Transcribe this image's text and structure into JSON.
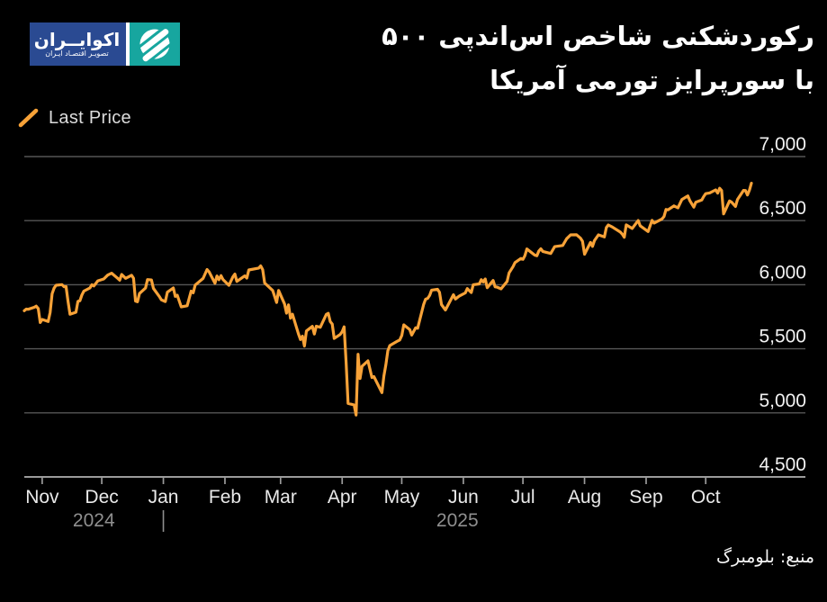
{
  "title": {
    "line1": "رکوردشکنی شاخص اس‌اندپی ۵۰۰",
    "line2": "با سورپرایز تورمی آمریکا"
  },
  "legend": {
    "label": "Last Price",
    "marker_color": "#f7a238",
    "position": "top-left"
  },
  "source": {
    "text": "منبع: بلومبرگ"
  },
  "logo": {
    "brand_title": "اکوایــران",
    "brand_subtitle": "تصویـر اقتصـاد ایـران",
    "blue": "#2a4a92",
    "teal": "#17a69f",
    "globe_icon": "striped-globe-icon"
  },
  "colors": {
    "background": "#000000",
    "line": "#f7a238",
    "grid": "#565656",
    "axis": "#9b9b9b",
    "y_label": "#f2f2f2",
    "month_label": "#e9e9e9",
    "year_label": "#8f8f8f"
  },
  "chart_data": {
    "type": "line",
    "series_name": "Last Price",
    "x_range": [
      "2024-10-23",
      "2025-10-24"
    ],
    "ylim": [
      4500,
      7000
    ],
    "grid": "horizontal",
    "legend_position": "top-left",
    "y_ticks": [
      {
        "value": 7000,
        "label": "7,000"
      },
      {
        "value": 6500,
        "label": "6,500"
      },
      {
        "value": 6000,
        "label": "6,000"
      },
      {
        "value": 5500,
        "label": "5,500"
      },
      {
        "value": 5000,
        "label": "5,000"
      },
      {
        "value": 4500,
        "label": "4,500"
      }
    ],
    "x_ticks": [
      {
        "date": "2024-11-01",
        "label": "Nov"
      },
      {
        "date": "2024-12-01",
        "label": "Dec"
      },
      {
        "date": "2025-01-01",
        "label": "Jan"
      },
      {
        "date": "2025-02-01",
        "label": "Feb"
      },
      {
        "date": "2025-03-01",
        "label": "Mar"
      },
      {
        "date": "2025-04-01",
        "label": "Apr"
      },
      {
        "date": "2025-05-01",
        "label": "May"
      },
      {
        "date": "2025-06-01",
        "label": "Jun"
      },
      {
        "date": "2025-07-01",
        "label": "Jul"
      },
      {
        "date": "2025-08-01",
        "label": "Aug"
      },
      {
        "date": "2025-09-01",
        "label": "Sep"
      },
      {
        "date": "2025-10-01",
        "label": "Oct"
      }
    ],
    "year_divider_date": "2025-01-01",
    "years": [
      {
        "label": "2024"
      },
      {
        "label": "2025"
      }
    ],
    "points": [
      [
        "2024-10-23",
        5797
      ],
      [
        "2024-10-24",
        5810
      ],
      [
        "2024-10-25",
        5808
      ],
      [
        "2024-10-28",
        5824
      ],
      [
        "2024-10-29",
        5833
      ],
      [
        "2024-10-30",
        5814
      ],
      [
        "2024-10-31",
        5705
      ],
      [
        "2024-11-01",
        5729
      ],
      [
        "2024-11-04",
        5713
      ],
      [
        "2024-11-05",
        5783
      ],
      [
        "2024-11-06",
        5929
      ],
      [
        "2024-11-07",
        5973
      ],
      [
        "2024-11-08",
        5996
      ],
      [
        "2024-11-11",
        6001
      ],
      [
        "2024-11-12",
        5984
      ],
      [
        "2024-11-13",
        5985
      ],
      [
        "2024-11-14",
        5870
      ],
      [
        "2024-11-15",
        5770
      ],
      [
        "2024-11-18",
        5785
      ],
      [
        "2024-11-19",
        5870
      ],
      [
        "2024-11-20",
        5875
      ],
      [
        "2024-11-21",
        5920
      ],
      [
        "2024-11-22",
        5950
      ],
      [
        "2024-11-25",
        5975
      ],
      [
        "2024-11-26",
        6000
      ],
      [
        "2024-11-27",
        5990
      ],
      [
        "2024-11-29",
        6030
      ],
      [
        "2024-12-02",
        6045
      ],
      [
        "2024-12-04",
        6075
      ],
      [
        "2024-12-06",
        6090
      ],
      [
        "2024-12-09",
        6050
      ],
      [
        "2024-12-10",
        6035
      ],
      [
        "2024-12-11",
        6080
      ],
      [
        "2024-12-13",
        6050
      ],
      [
        "2024-12-16",
        6074
      ],
      [
        "2024-12-17",
        6050
      ],
      [
        "2024-12-18",
        5872
      ],
      [
        "2024-12-19",
        5867
      ],
      [
        "2024-12-20",
        5931
      ],
      [
        "2024-12-23",
        5974
      ],
      [
        "2024-12-24",
        6040
      ],
      [
        "2024-12-26",
        6037
      ],
      [
        "2024-12-27",
        5971
      ],
      [
        "2024-12-30",
        5907
      ],
      [
        "2024-12-31",
        5882
      ],
      [
        "2025-01-02",
        5869
      ],
      [
        "2025-01-03",
        5942
      ],
      [
        "2025-01-06",
        5975
      ],
      [
        "2025-01-07",
        5909
      ],
      [
        "2025-01-08",
        5918
      ],
      [
        "2025-01-10",
        5827
      ],
      [
        "2025-01-13",
        5836
      ],
      [
        "2025-01-15",
        5950
      ],
      [
        "2025-01-16",
        5937
      ],
      [
        "2025-01-17",
        5997
      ],
      [
        "2025-01-21",
        6049
      ],
      [
        "2025-01-23",
        6119
      ],
      [
        "2025-01-24",
        6101
      ],
      [
        "2025-01-27",
        6012
      ],
      [
        "2025-01-28",
        6068
      ],
      [
        "2025-01-29",
        6039
      ],
      [
        "2025-01-30",
        6071
      ],
      [
        "2025-01-31",
        6041
      ],
      [
        "2025-02-03",
        5995
      ],
      [
        "2025-02-05",
        6061
      ],
      [
        "2025-02-06",
        6083
      ],
      [
        "2025-02-07",
        6026
      ],
      [
        "2025-02-11",
        6069
      ],
      [
        "2025-02-12",
        6052
      ],
      [
        "2025-02-13",
        6115
      ],
      [
        "2025-02-18",
        6130
      ],
      [
        "2025-02-19",
        6147
      ],
      [
        "2025-02-20",
        6118
      ],
      [
        "2025-02-21",
        6013
      ],
      [
        "2025-02-25",
        5955
      ],
      [
        "2025-02-27",
        5862
      ],
      [
        "2025-02-28",
        5955
      ],
      [
        "2025-03-03",
        5850
      ],
      [
        "2025-03-04",
        5778
      ],
      [
        "2025-03-05",
        5843
      ],
      [
        "2025-03-06",
        5739
      ],
      [
        "2025-03-07",
        5770
      ],
      [
        "2025-03-10",
        5615
      ],
      [
        "2025-03-11",
        5572
      ],
      [
        "2025-03-12",
        5599
      ],
      [
        "2025-03-13",
        5521
      ],
      [
        "2025-03-14",
        5639
      ],
      [
        "2025-03-17",
        5675
      ],
      [
        "2025-03-18",
        5615
      ],
      [
        "2025-03-19",
        5676
      ],
      [
        "2025-03-21",
        5668
      ],
      [
        "2025-03-24",
        5768
      ],
      [
        "2025-03-25",
        5777
      ],
      [
        "2025-03-26",
        5712
      ],
      [
        "2025-03-27",
        5693
      ],
      [
        "2025-03-28",
        5581
      ],
      [
        "2025-03-31",
        5612
      ],
      [
        "2025-04-01",
        5633
      ],
      [
        "2025-04-02",
        5671
      ],
      [
        "2025-04-03",
        5396
      ],
      [
        "2025-04-04",
        5074
      ],
      [
        "2025-04-07",
        5062
      ],
      [
        "2025-04-08",
        4983
      ],
      [
        "2025-04-09",
        5457
      ],
      [
        "2025-04-10",
        5268
      ],
      [
        "2025-04-11",
        5363
      ],
      [
        "2025-04-14",
        5406
      ],
      [
        "2025-04-16",
        5276
      ],
      [
        "2025-04-17",
        5283
      ],
      [
        "2025-04-21",
        5158
      ],
      [
        "2025-04-22",
        5288
      ],
      [
        "2025-04-23",
        5376
      ],
      [
        "2025-04-24",
        5485
      ],
      [
        "2025-04-25",
        5525
      ],
      [
        "2025-04-29",
        5561
      ],
      [
        "2025-04-30",
        5569
      ],
      [
        "2025-05-01",
        5604
      ],
      [
        "2025-05-02",
        5687
      ],
      [
        "2025-05-05",
        5650
      ],
      [
        "2025-05-06",
        5607
      ],
      [
        "2025-05-08",
        5664
      ],
      [
        "2025-05-09",
        5660
      ],
      [
        "2025-05-12",
        5844
      ],
      [
        "2025-05-13",
        5887
      ],
      [
        "2025-05-14",
        5893
      ],
      [
        "2025-05-15",
        5916
      ],
      [
        "2025-05-16",
        5958
      ],
      [
        "2025-05-19",
        5964
      ],
      [
        "2025-05-20",
        5940
      ],
      [
        "2025-05-21",
        5845
      ],
      [
        "2025-05-23",
        5803
      ],
      [
        "2025-05-27",
        5922
      ],
      [
        "2025-05-28",
        5888
      ],
      [
        "2025-05-30",
        5912
      ],
      [
        "2025-06-02",
        5936
      ],
      [
        "2025-06-03",
        5970
      ],
      [
        "2025-06-05",
        5939
      ],
      [
        "2025-06-06",
        6000
      ],
      [
        "2025-06-09",
        6006
      ],
      [
        "2025-06-10",
        6039
      ],
      [
        "2025-06-11",
        6022
      ],
      [
        "2025-06-12",
        6045
      ],
      [
        "2025-06-13",
        5977
      ],
      [
        "2025-06-16",
        6033
      ],
      [
        "2025-06-17",
        5983
      ],
      [
        "2025-06-18",
        5981
      ],
      [
        "2025-06-20",
        5968
      ],
      [
        "2025-06-23",
        6025
      ],
      [
        "2025-06-24",
        6092
      ],
      [
        "2025-06-26",
        6141
      ],
      [
        "2025-06-27",
        6173
      ],
      [
        "2025-06-30",
        6205
      ],
      [
        "2025-07-01",
        6198
      ],
      [
        "2025-07-02",
        6227
      ],
      [
        "2025-07-03",
        6279
      ],
      [
        "2025-07-07",
        6230
      ],
      [
        "2025-07-08",
        6226
      ],
      [
        "2025-07-09",
        6263
      ],
      [
        "2025-07-10",
        6280
      ],
      [
        "2025-07-11",
        6260
      ],
      [
        "2025-07-15",
        6244
      ],
      [
        "2025-07-17",
        6297
      ],
      [
        "2025-07-21",
        6306
      ],
      [
        "2025-07-23",
        6359
      ],
      [
        "2025-07-25",
        6389
      ],
      [
        "2025-07-28",
        6390
      ],
      [
        "2025-07-30",
        6363
      ],
      [
        "2025-07-31",
        6339
      ],
      [
        "2025-08-01",
        6238
      ],
      [
        "2025-08-04",
        6330
      ],
      [
        "2025-08-05",
        6299
      ],
      [
        "2025-08-06",
        6345
      ],
      [
        "2025-08-08",
        6389
      ],
      [
        "2025-08-11",
        6373
      ],
      [
        "2025-08-12",
        6446
      ],
      [
        "2025-08-13",
        6466
      ],
      [
        "2025-08-15",
        6450
      ],
      [
        "2025-08-19",
        6411
      ],
      [
        "2025-08-20",
        6395
      ],
      [
        "2025-08-21",
        6370
      ],
      [
        "2025-08-22",
        6467
      ],
      [
        "2025-08-25",
        6439
      ],
      [
        "2025-08-27",
        6481
      ],
      [
        "2025-08-28",
        6501
      ],
      [
        "2025-08-29",
        6460
      ],
      [
        "2025-09-02",
        6415
      ],
      [
        "2025-09-04",
        6502
      ],
      [
        "2025-09-05",
        6481
      ],
      [
        "2025-09-09",
        6513
      ],
      [
        "2025-09-10",
        6532
      ],
      [
        "2025-09-11",
        6587
      ],
      [
        "2025-09-12",
        6584
      ],
      [
        "2025-09-15",
        6615
      ],
      [
        "2025-09-17",
        6600
      ],
      [
        "2025-09-18",
        6632
      ],
      [
        "2025-09-19",
        6664
      ],
      [
        "2025-09-22",
        6693
      ],
      [
        "2025-09-23",
        6656
      ],
      [
        "2025-09-25",
        6605
      ],
      [
        "2025-09-26",
        6644
      ],
      [
        "2025-09-29",
        6661
      ],
      [
        "2025-09-30",
        6688
      ],
      [
        "2025-10-01",
        6711
      ],
      [
        "2025-10-03",
        6716
      ],
      [
        "2025-10-06",
        6740
      ],
      [
        "2025-10-07",
        6715
      ],
      [
        "2025-10-08",
        6753
      ],
      [
        "2025-10-09",
        6735
      ],
      [
        "2025-10-10",
        6553
      ],
      [
        "2025-10-13",
        6654
      ],
      [
        "2025-10-14",
        6645
      ],
      [
        "2025-10-16",
        6611
      ],
      [
        "2025-10-17",
        6664
      ],
      [
        "2025-10-20",
        6736
      ],
      [
        "2025-10-21",
        6735
      ],
      [
        "2025-10-22",
        6700
      ],
      [
        "2025-10-23",
        6738
      ],
      [
        "2025-10-24",
        6792
      ]
    ]
  }
}
